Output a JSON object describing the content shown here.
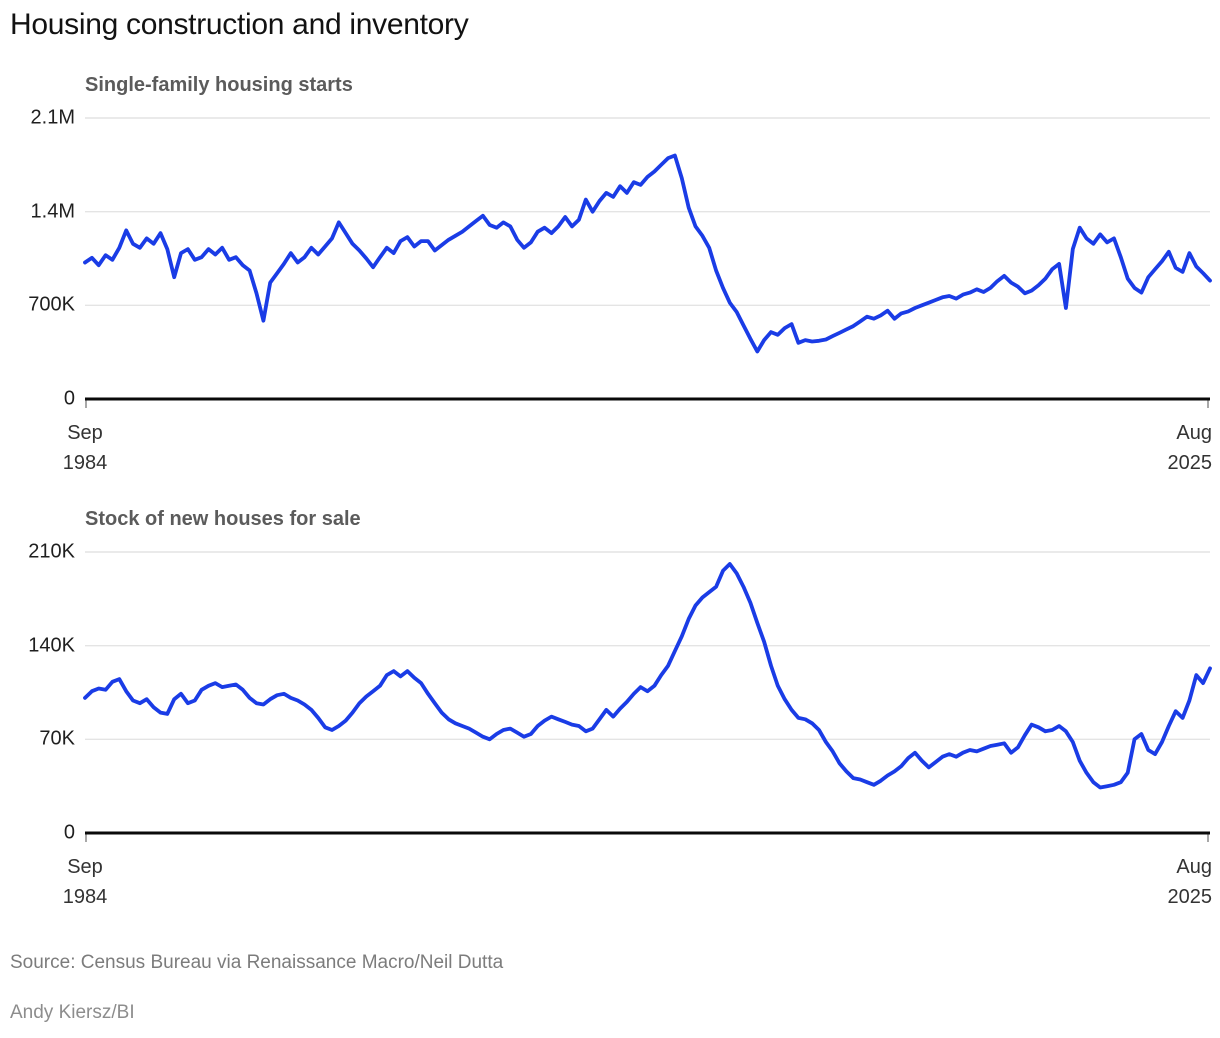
{
  "page": {
    "title": "Housing construction and inventory",
    "source": "Source: Census Bureau via Renaissance Macro/Neil Dutta",
    "credit": "Andy Kiersz/BI"
  },
  "colors": {
    "line": "#1a3ce6",
    "grid": "#e4e4e4",
    "axis": "#0a0a0a",
    "end_tick": "#8a8a8a",
    "tick_label": "#1f1f1f",
    "subtitle": "#5b5b5b",
    "muted": "#7c7c7c"
  },
  "chart_data": [
    {
      "type": "line",
      "title": "Single-family housing starts",
      "x_start": "Sep 1984",
      "x_end": "Aug 2025",
      "x_start_lines": [
        "Sep",
        "1984"
      ],
      "x_end_lines": [
        "Aug",
        "2025"
      ],
      "y_max": 2100,
      "y_ticks": [
        {
          "label": "2.1M",
          "value": 2100
        },
        {
          "label": "1.4M",
          "value": 1400
        },
        {
          "label": "700K",
          "value": 700
        },
        {
          "label": "0",
          "value": 0
        }
      ],
      "grid": true,
      "legend": "none",
      "sample_interval_months": 3,
      "values_thousands": [
        1020,
        1055,
        1000,
        1075,
        1040,
        1130,
        1260,
        1160,
        1130,
        1200,
        1160,
        1240,
        1120,
        910,
        1090,
        1120,
        1040,
        1060,
        1120,
        1080,
        1130,
        1040,
        1060,
        1000,
        960,
        790,
        585,
        870,
        940,
        1010,
        1090,
        1020,
        1060,
        1130,
        1080,
        1140,
        1200,
        1320,
        1240,
        1160,
        1110,
        1050,
        985,
        1060,
        1130,
        1090,
        1180,
        1210,
        1140,
        1180,
        1180,
        1110,
        1150,
        1190,
        1220,
        1250,
        1290,
        1330,
        1370,
        1300,
        1280,
        1320,
        1290,
        1190,
        1130,
        1170,
        1250,
        1280,
        1240,
        1290,
        1360,
        1290,
        1340,
        1490,
        1400,
        1480,
        1540,
        1510,
        1590,
        1540,
        1620,
        1600,
        1660,
        1700,
        1750,
        1800,
        1820,
        1650,
        1430,
        1290,
        1220,
        1130,
        960,
        830,
        720,
        650,
        550,
        450,
        355,
        440,
        500,
        480,
        530,
        560,
        420,
        440,
        430,
        435,
        445,
        470,
        495,
        520,
        545,
        580,
        615,
        600,
        625,
        660,
        600,
        640,
        655,
        680,
        700,
        720,
        740,
        760,
        770,
        750,
        780,
        795,
        820,
        800,
        830,
        880,
        920,
        870,
        840,
        790,
        810,
        850,
        900,
        970,
        1010,
        680,
        1120,
        1280,
        1200,
        1160,
        1230,
        1170,
        1200,
        1060,
        900,
        830,
        795,
        910,
        970,
        1030,
        1100,
        980,
        950,
        1090,
        990,
        940,
        885
      ]
    },
    {
      "type": "line",
      "title": "Stock of new houses for sale",
      "x_start": "Sep 1984",
      "x_end": "Aug 2025",
      "x_start_lines": [
        "Sep",
        "1984"
      ],
      "x_end_lines": [
        "Aug",
        "2025"
      ],
      "y_max": 210,
      "y_ticks": [
        {
          "label": "210K",
          "value": 210
        },
        {
          "label": "140K",
          "value": 140
        },
        {
          "label": "70K",
          "value": 70
        },
        {
          "label": "0",
          "value": 0
        }
      ],
      "grid": true,
      "legend": "none",
      "sample_interval_months": 3,
      "values_thousands": [
        101,
        106,
        108,
        107,
        113,
        115,
        106,
        99,
        97,
        100,
        94,
        90,
        89,
        100,
        104,
        97,
        99,
        107,
        110,
        112,
        109,
        110,
        111,
        107,
        101,
        97,
        96,
        100,
        103,
        104,
        101,
        99,
        96,
        92,
        86,
        79,
        77,
        80,
        84,
        90,
        97,
        102,
        106,
        110,
        118,
        121,
        117,
        121,
        116,
        112,
        104,
        97,
        90,
        85,
        82,
        80,
        78,
        75,
        72,
        70,
        74,
        77,
        78,
        75,
        72,
        74,
        80,
        84,
        87,
        85,
        83,
        81,
        80,
        76,
        78,
        85,
        92,
        87,
        93,
        98,
        104,
        109,
        106,
        110,
        118,
        125,
        136,
        147,
        160,
        170,
        176,
        180,
        184,
        196,
        201,
        194,
        184,
        172,
        157,
        143,
        125,
        110,
        100,
        92,
        86,
        85,
        82,
        77,
        68,
        61,
        52,
        46,
        41,
        40,
        38,
        36,
        39,
        43,
        46,
        50,
        56,
        60,
        54,
        49,
        53,
        57,
        59,
        57,
        60,
        62,
        61,
        63,
        65,
        66,
        67,
        60,
        64,
        73,
        81,
        79,
        76,
        77,
        80,
        76,
        68,
        54,
        45,
        38,
        34,
        35,
        36,
        38,
        45,
        70,
        74,
        62,
        59,
        68,
        80,
        91,
        86,
        99,
        118,
        112,
        123
      ]
    }
  ]
}
